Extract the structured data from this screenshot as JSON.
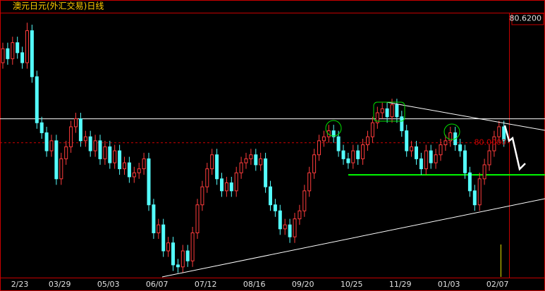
{
  "chart_data": {
    "type": "candlestick",
    "title": "澳元日元(外汇交易)日线",
    "categories": [
      null,
      null,
      null,
      "2/23",
      null,
      null,
      null,
      null,
      null,
      null,
      null,
      null,
      null,
      "03/29",
      null,
      null,
      null,
      null,
      null,
      null,
      null,
      null,
      null,
      "05/03",
      null,
      null,
      null,
      null,
      null,
      null,
      null,
      null,
      null,
      "06/07",
      null,
      null,
      null,
      null,
      null,
      null,
      null,
      null,
      null,
      "07/12",
      null,
      null,
      null,
      null,
      null,
      null,
      null,
      null,
      null,
      "08/16",
      null,
      null,
      null,
      null,
      null,
      null,
      null,
      null,
      null,
      "09/20",
      null,
      null,
      null,
      null,
      null,
      null,
      null,
      null,
      null,
      "10/25",
      null,
      null,
      null,
      null,
      null,
      null,
      null,
      null,
      null,
      "11/29",
      null,
      null,
      null,
      null,
      null,
      null,
      null,
      null,
      null,
      "01/03",
      null,
      null,
      null,
      null,
      null,
      null,
      null,
      null,
      null,
      "02/07"
    ],
    "open": [
      80.4,
      80.47,
      80.42,
      80.5,
      80.45,
      80.4,
      80.56,
      80.33,
      80.1,
      80.05,
      79.96,
      80.01,
      79.82,
      79.92,
      79.98,
      80.08,
      80.12,
      80.01,
      80.03,
      79.96,
      80.01,
      79.92,
      79.98,
      79.9,
      79.96,
      79.87,
      79.9,
      79.83,
      79.85,
      79.87,
      79.92,
      79.69,
      79.55,
      79.59,
      79.46,
      79.5,
      79.39,
      79.38,
      79.46,
      79.41,
      79.55,
      79.69,
      79.78,
      79.87,
      79.94,
      79.82,
      79.76,
      79.8,
      79.76,
      79.85,
      79.9,
      79.92,
      79.94,
      79.89,
      79.92,
      79.78,
      79.69,
      79.66,
      79.57,
      79.59,
      79.53,
      79.62,
      79.66,
      79.76,
      79.85,
      79.94,
      80.01,
      80.03,
      80.06,
      80.03,
      79.96,
      79.92,
      79.9,
      79.96,
      79.92,
      79.99,
      80.03,
      80.1,
      80.15,
      80.17,
      80.13,
      80.19,
      80.13,
      80.06,
      79.96,
      79.98,
      79.92,
      79.87,
      79.96,
      79.9,
      79.94,
      79.99,
      80.01,
      80.05,
      79.99,
      79.96,
      79.85,
      79.76,
      79.69,
      79.82,
      79.89,
      79.96,
      80.03,
      80.08
    ],
    "high": [
      80.5,
      80.5,
      80.53,
      80.53,
      80.48,
      80.6,
      80.59,
      80.36,
      80.13,
      80.08,
      80.04,
      80.04,
      79.95,
      80.01,
      80.11,
      80.15,
      80.15,
      80.06,
      80.06,
      80.04,
      80.04,
      80.01,
      80.01,
      79.99,
      79.99,
      79.93,
      79.93,
      79.88,
      79.9,
      79.95,
      79.95,
      79.72,
      79.62,
      79.62,
      79.53,
      79.53,
      79.42,
      79.49,
      79.49,
      79.58,
      79.72,
      79.81,
      79.9,
      79.97,
      79.97,
      79.85,
      79.83,
      79.83,
      79.88,
      79.93,
      79.95,
      79.97,
      79.97,
      79.95,
      79.95,
      79.81,
      79.72,
      79.69,
      79.62,
      79.62,
      79.65,
      79.69,
      79.79,
      79.88,
      79.97,
      80.04,
      80.06,
      80.09,
      80.09,
      80.06,
      79.99,
      79.95,
      79.99,
      79.99,
      80.02,
      80.06,
      80.13,
      80.18,
      80.2,
      80.2,
      80.22,
      80.22,
      80.16,
      80.09,
      80.01,
      80.01,
      79.95,
      79.99,
      79.99,
      79.97,
      80.02,
      80.04,
      80.08,
      80.08,
      80.02,
      79.99,
      79.88,
      79.79,
      79.85,
      79.92,
      79.99,
      80.06,
      80.11,
      80.11
    ],
    "low": [
      80.37,
      80.39,
      80.39,
      80.42,
      80.37,
      80.37,
      80.3,
      80.07,
      80.02,
      79.93,
      79.93,
      79.79,
      79.79,
      79.89,
      79.95,
      80.05,
      79.98,
      79.98,
      79.93,
      79.93,
      79.89,
      79.89,
      79.87,
      79.87,
      79.84,
      79.84,
      79.8,
      79.8,
      79.82,
      79.84,
      79.66,
      79.52,
      79.52,
      79.43,
      79.43,
      79.36,
      79.35,
      79.35,
      79.38,
      79.38,
      79.52,
      79.66,
      79.75,
      79.84,
      79.79,
      79.73,
      79.73,
      79.73,
      79.73,
      79.82,
      79.87,
      79.89,
      79.86,
      79.86,
      79.75,
      79.66,
      79.63,
      79.54,
      79.54,
      79.5,
      79.5,
      79.59,
      79.63,
      79.73,
      79.82,
      79.91,
      79.98,
      80.0,
      80.0,
      79.93,
      79.89,
      79.87,
      79.87,
      79.89,
      79.89,
      79.96,
      80.0,
      80.07,
      80.12,
      80.1,
      80.1,
      80.1,
      80.03,
      79.93,
      79.93,
      79.89,
      79.84,
      79.84,
      79.87,
      79.87,
      79.91,
      79.96,
      79.98,
      79.96,
      79.93,
      79.82,
      79.73,
      79.66,
      79.66,
      79.79,
      79.86,
      79.93,
      80.0,
      79.98
    ],
    "close": [
      80.47,
      80.42,
      80.5,
      80.45,
      80.4,
      80.56,
      80.33,
      80.1,
      80.05,
      79.96,
      80.01,
      79.82,
      79.92,
      79.98,
      80.08,
      80.12,
      80.01,
      80.03,
      79.96,
      80.01,
      79.92,
      79.98,
      79.9,
      79.96,
      79.87,
      79.9,
      79.83,
      79.85,
      79.87,
      79.92,
      79.69,
      79.55,
      79.59,
      79.46,
      79.5,
      79.39,
      79.38,
      79.46,
      79.41,
      79.55,
      79.69,
      79.78,
      79.87,
      79.94,
      79.82,
      79.76,
      79.8,
      79.76,
      79.85,
      79.9,
      79.92,
      79.94,
      79.89,
      79.92,
      79.78,
      79.69,
      79.66,
      79.57,
      79.59,
      79.53,
      79.62,
      79.66,
      79.76,
      79.85,
      79.94,
      80.01,
      80.03,
      80.06,
      80.03,
      79.96,
      79.92,
      79.9,
      79.96,
      79.92,
      79.99,
      80.03,
      80.1,
      80.15,
      80.17,
      80.13,
      80.19,
      80.13,
      80.06,
      79.96,
      79.98,
      79.92,
      79.87,
      79.96,
      79.9,
      79.94,
      79.99,
      80.01,
      80.05,
      79.99,
      79.96,
      79.85,
      79.76,
      79.69,
      79.82,
      79.89,
      79.96,
      80.03,
      80.08,
      80.01
    ],
    "up_color": "#ff3c3c",
    "down_color": "#54fcfc",
    "ylim": [
      79.33,
      80.65
    ],
    "yticks": [
      {
        "value": 80.62,
        "label": "80.6200"
      }
    ],
    "price_line": {
      "value": 80,
      "label": "80.0000",
      "color": "#c80000"
    },
    "hlines": [
      {
        "value": 80.12,
        "color": "#ffffff"
      },
      {
        "value": 79.84,
        "color": "#00ff00"
      }
    ]
  }
}
